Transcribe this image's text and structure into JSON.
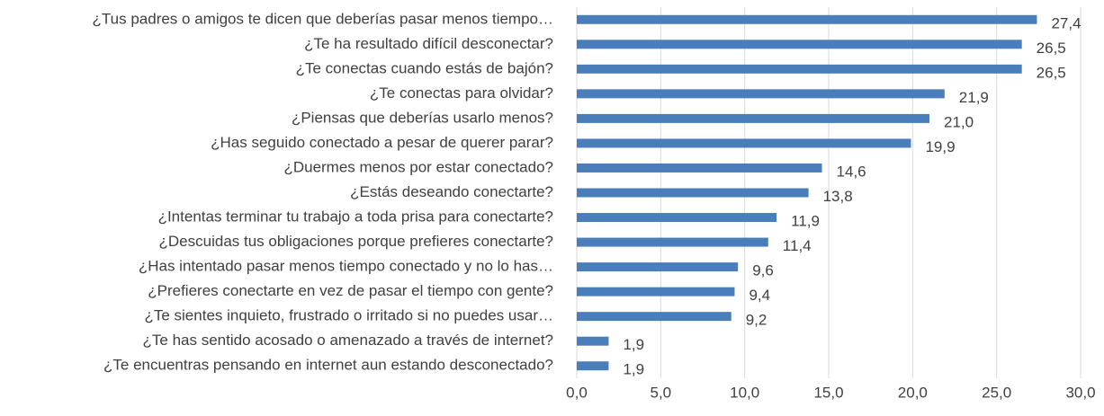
{
  "chart_data": {
    "type": "barh",
    "categories": [
      "¿Tus padres o amigos te dicen que deberías pasar menos tiempo…",
      "¿Te ha resultado difícil desconectar?",
      "¿Te conectas cuando estás de bajón?",
      "¿Te conectas para olvidar?",
      "¿Piensas que deberías usarlo menos?",
      "¿Has seguido conectado a pesar de querer parar?",
      "¿Duermes menos por estar conectado?",
      "¿Estás deseando conectarte?",
      "¿Intentas terminar tu trabajo a toda prisa para conectarte?",
      "¿Descuidas tus obligaciones porque prefieres conectarte?",
      "¿Has intentado pasar menos tiempo conectado y no lo has…",
      "¿Prefieres conectarte en vez de pasar el tiempo con gente?",
      "¿Te sientes inquieto, frustrado o irritado si no puedes usar…",
      "¿Te has sentido acosado o amenazado a través de internet?",
      "¿Te encuentras pensando en internet aun estando desconectado?"
    ],
    "values": [
      27.4,
      26.5,
      26.5,
      21.9,
      21.0,
      19.9,
      14.6,
      13.8,
      11.9,
      11.4,
      9.6,
      9.4,
      9.2,
      1.9,
      1.9
    ],
    "value_labels": [
      "27,4",
      "26,5",
      "26,5",
      "21,9",
      "21,0",
      "19,9",
      "14,6",
      "13,8",
      "11,9",
      "11,4",
      "9,6",
      "9,4",
      "9,2",
      "1,9",
      "1,9"
    ],
    "color": "#4a7ebb",
    "xlim": [
      0,
      30
    ],
    "xticks": [
      {
        "value": 0,
        "label": "0,0"
      },
      {
        "value": 5,
        "label": "5,0"
      },
      {
        "value": 10,
        "label": "10,0"
      },
      {
        "value": 15,
        "label": "15,0"
      },
      {
        "value": 20,
        "label": "20,0"
      },
      {
        "value": 25,
        "label": "25,0"
      },
      {
        "value": 30,
        "label": "30,0"
      }
    ],
    "grid": true
  }
}
